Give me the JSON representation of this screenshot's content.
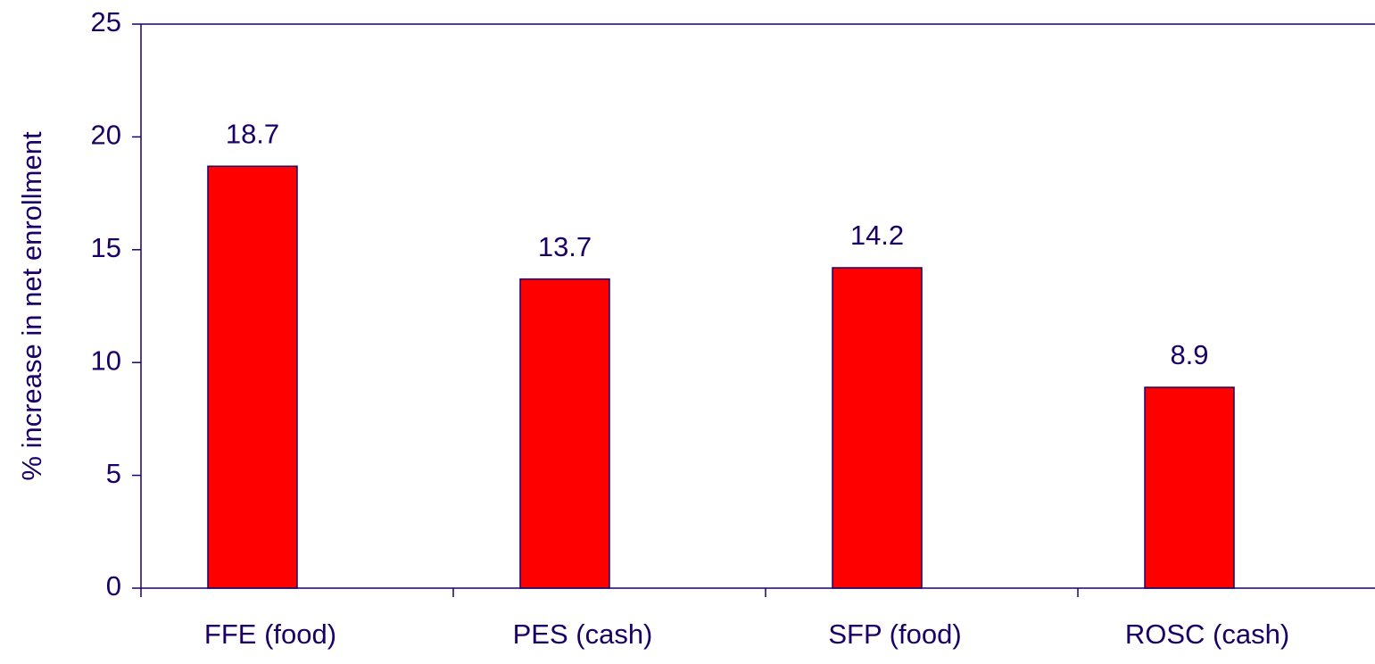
{
  "chart_data": {
    "type": "bar",
    "y_axis_label": "% increase in net enrollment",
    "categories": [
      "FFE (food)",
      "PES (cash)",
      "SFP (food)",
      "ROSC (cash)"
    ],
    "values": [
      18.7,
      13.7,
      14.2,
      8.9
    ],
    "color": "#ff0000",
    "ylim": [
      0,
      25
    ],
    "yticks": [
      0,
      5,
      10,
      15,
      20,
      25
    ],
    "grid": false
  }
}
